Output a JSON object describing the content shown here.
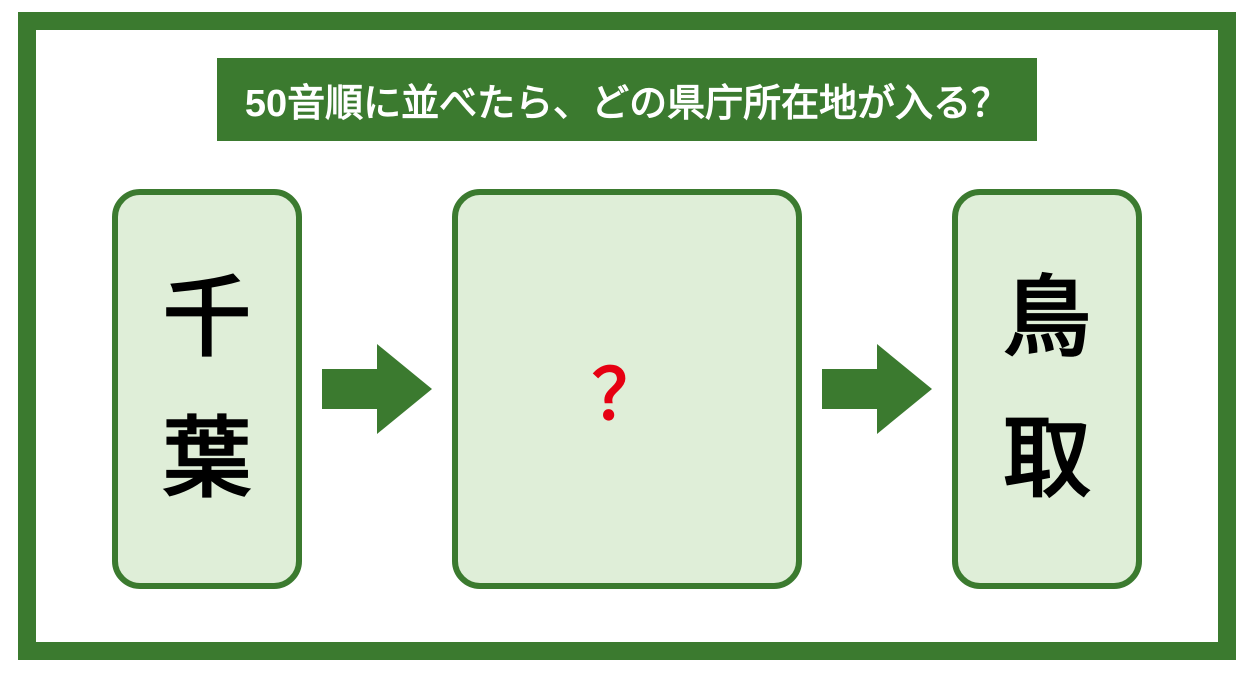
{
  "question": {
    "text": "50音順に並べたら、どの県庁所在地が入る？",
    "fontsize": 38,
    "bar_bg": "#3b7a2f",
    "text_color": "#ffffff"
  },
  "frame": {
    "border_color": "#3b7a2f",
    "background": "#ffffff"
  },
  "cards": {
    "background": "#dfeed8",
    "border_color": "#3b7a2f",
    "left": {
      "char1": "千",
      "char2": "葉",
      "fontsize": 88
    },
    "middle": {
      "text": "？",
      "fontsize": 70,
      "color": "#e60012"
    },
    "right": {
      "char1": "鳥",
      "char2": "取",
      "fontsize": 88
    }
  },
  "arrow": {
    "color": "#3b7a2f",
    "width": 110,
    "height": 110
  }
}
